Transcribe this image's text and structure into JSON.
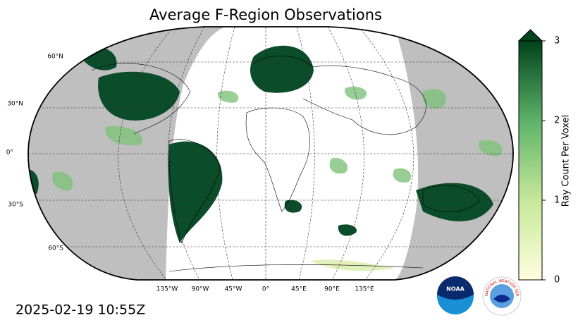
{
  "title": "Average F-Region Observations",
  "timestamp": "2025-02-19 10:55Z",
  "lat_labels": [
    "60°N",
    "30°N",
    "0°",
    "30°S",
    "60°S"
  ],
  "lon_labels": [
    "135°W",
    "90°W",
    "45°W",
    "0°",
    "45°E",
    "90°E",
    "135°E"
  ],
  "colorbar": {
    "label": "Ray Count Per Voxel",
    "lim": [
      0,
      3
    ],
    "ticks": [
      0,
      1,
      2,
      3
    ],
    "colors": [
      "#ffffe0",
      "#c7e89a",
      "#5fb46a",
      "#00441b"
    ]
  },
  "logos": {
    "noaa": "NOAA",
    "nws": "NATIONAL WEATHER SERVICE"
  }
}
